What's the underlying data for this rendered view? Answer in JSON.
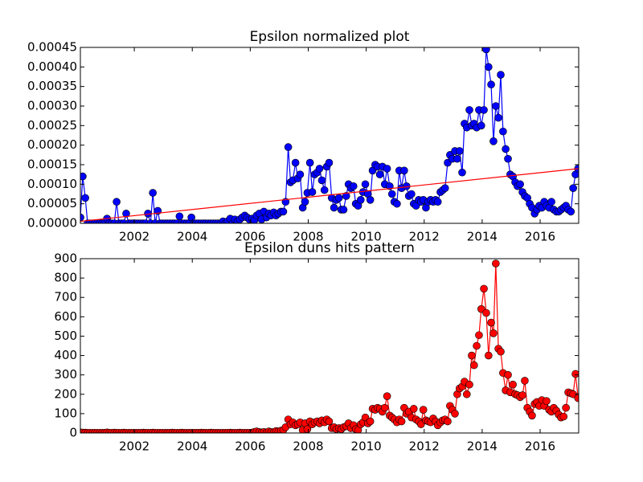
{
  "chart_data": [
    {
      "type": "line",
      "title": "Epsilon normalized plot",
      "x": [
        2000.14,
        2000.22,
        2000.31,
        2000.39,
        2000.47,
        2000.56,
        2000.64,
        2000.72,
        2000.81,
        2000.89,
        2000.97,
        2001.06,
        2001.14,
        2001.22,
        2001.31,
        2001.39,
        2001.47,
        2001.56,
        2001.64,
        2001.72,
        2001.81,
        2001.89,
        2001.97,
        2002.06,
        2002.14,
        2002.22,
        2002.31,
        2002.39,
        2002.47,
        2002.56,
        2002.64,
        2002.72,
        2002.81,
        2002.89,
        2002.97,
        2003.06,
        2003.14,
        2003.22,
        2003.31,
        2003.39,
        2003.47,
        2003.56,
        2003.64,
        2003.72,
        2003.81,
        2003.89,
        2003.97,
        2004.06,
        2004.14,
        2004.22,
        2004.31,
        2004.39,
        2004.47,
        2004.56,
        2004.64,
        2004.72,
        2004.81,
        2004.89,
        2004.97,
        2005.06,
        2005.14,
        2005.22,
        2005.31,
        2005.39,
        2005.47,
        2005.56,
        2005.64,
        2005.72,
        2005.81,
        2005.89,
        2005.97,
        2006.06,
        2006.14,
        2006.22,
        2006.31,
        2006.39,
        2006.47,
        2006.56,
        2006.64,
        2006.72,
        2006.81,
        2006.89,
        2006.97,
        2007.06,
        2007.14,
        2007.22,
        2007.31,
        2007.39,
        2007.47,
        2007.56,
        2007.64,
        2007.72,
        2007.81,
        2007.89,
        2007.97,
        2008.06,
        2008.14,
        2008.22,
        2008.31,
        2008.39,
        2008.47,
        2008.56,
        2008.64,
        2008.72,
        2008.81,
        2008.89,
        2008.97,
        2009.06,
        2009.14,
        2009.22,
        2009.31,
        2009.39,
        2009.47,
        2009.56,
        2009.64,
        2009.72,
        2009.81,
        2009.89,
        2009.97,
        2010.06,
        2010.14,
        2010.22,
        2010.31,
        2010.39,
        2010.47,
        2010.56,
        2010.64,
        2010.72,
        2010.81,
        2010.89,
        2010.97,
        2011.06,
        2011.14,
        2011.22,
        2011.31,
        2011.39,
        2011.47,
        2011.56,
        2011.64,
        2011.72,
        2011.81,
        2011.89,
        2011.97,
        2012.06,
        2012.14,
        2012.22,
        2012.31,
        2012.39,
        2012.47,
        2012.56,
        2012.64,
        2012.72,
        2012.81,
        2012.89,
        2012.97,
        2013.06,
        2013.14,
        2013.22,
        2013.31,
        2013.39,
        2013.47,
        2013.56,
        2013.64,
        2013.72,
        2013.81,
        2013.89,
        2013.97,
        2014.06,
        2014.14,
        2014.22,
        2014.31,
        2014.39,
        2014.47,
        2014.56,
        2014.64,
        2014.72,
        2014.81,
        2014.89,
        2014.97,
        2015.06,
        2015.14,
        2015.22,
        2015.31,
        2015.39,
        2015.47,
        2015.56,
        2015.64,
        2015.72,
        2015.81,
        2015.89,
        2015.97,
        2016.06,
        2016.14,
        2016.22,
        2016.31,
        2016.39,
        2016.47,
        2016.56,
        2016.64,
        2016.72,
        2016.81,
        2016.89,
        2016.97,
        2017.06,
        2017.14,
        2017.22,
        2017.31
      ],
      "series": [
        {
          "color": "#0000ff",
          "values": [
            1.5e-05,
            0.00012,
            6.5e-05,
            0,
            0,
            0,
            0,
            0,
            0,
            0,
            0,
            1.2e-05,
            0,
            0,
            0,
            5.5e-05,
            0,
            0,
            0,
            2.5e-05,
            0,
            0,
            0,
            0,
            0,
            0,
            0,
            0,
            2.5e-05,
            0,
            7.8e-05,
            0,
            3.2e-05,
            0,
            0,
            0,
            0,
            0,
            0,
            0,
            0,
            1.8e-05,
            0,
            0,
            0,
            0,
            1.5e-05,
            0,
            0,
            0,
            0,
            0,
            0,
            0,
            0,
            0,
            0,
            0,
            0,
            5e-06,
            0,
            5e-06,
            1.2e-05,
            0,
            1e-05,
            5e-06,
            1e-05,
            1.5e-05,
            2e-05,
            1.5e-05,
            1e-05,
            1.2e-05,
            8e-06,
            2e-05,
            2.5e-05,
            1e-05,
            3e-05,
            1.5e-05,
            2.5e-05,
            2e-05,
            2.8e-05,
            2e-05,
            2.5e-05,
            3e-05,
            3e-05,
            5.5e-05,
            0.000195,
            0.000105,
            0.00011,
            0.000155,
            0.000115,
            0.000125,
            4e-05,
            5.5e-05,
            7.8e-05,
            0.000155,
            8e-05,
            0.000125,
            0.00013,
            0.00014,
            0.00011,
            8.5e-05,
            0.000145,
            0.000155,
            6.5e-05,
            4e-05,
            6e-05,
            6.5e-05,
            3.5e-05,
            3.5e-05,
            7e-05,
            0.0001,
            9e-05,
            9.5e-05,
            5e-05,
            4.5e-05,
            6e-05,
            8e-05,
            0.0001,
            7.5e-05,
            6e-05,
            0.000135,
            0.00015,
            0.000145,
            0.000125,
            0.000145,
            0.0001,
            0.00014,
            9.5e-05,
            7.5e-05,
            5.5e-05,
            5e-05,
            0.000135,
            9e-05,
            0.000135,
            9.5e-05,
            7e-05,
            7.5e-05,
            5e-05,
            4.5e-05,
            6e-05,
            5.5e-05,
            6e-05,
            4e-05,
            5.5e-05,
            6e-05,
            5.5e-05,
            6e-05,
            5.5e-05,
            8e-05,
            8.5e-05,
            9e-05,
            0.000155,
            0.000175,
            0.000165,
            0.000185,
            0.000165,
            0.000185,
            0.00013,
            0.000255,
            0.000245,
            0.00029,
            0.00025,
            0.000255,
            0.000245,
            0.00029,
            0.00025,
            0.00029,
            0.000445,
            0.0004,
            0.000355,
            0.00021,
            0.0003,
            0.00027,
            0.00038,
            0.000235,
            0.00019,
            0.000165,
            0.000125,
            0.00012,
            0.000105,
            9.5e-05,
            0.0001,
            8e-05,
            7e-05,
            6.5e-05,
            5e-05,
            4e-05,
            2.5e-05,
            3.5e-05,
            4.5e-05,
            4e-05,
            5.5e-05,
            4.5e-05,
            4e-05,
            5.5e-05,
            3.5e-05,
            3e-05,
            3e-05,
            3.5e-05,
            4e-05,
            4.5e-05,
            3.5e-05,
            3e-05,
            9e-05,
            0.000125,
            0.00014
          ]
        }
      ],
      "trend": {
        "color": "#ff0000",
        "x": [
          2000.14,
          2017.33
        ],
        "values": [
          5e-06,
          0.00014
        ]
      },
      "xlim": [
        2000.14,
        2017.33
      ],
      "xticks": [
        2002,
        2004,
        2006,
        2008,
        2010,
        2012,
        2014,
        2016
      ],
      "ylim": [
        0,
        0.00045
      ],
      "yticks": [
        {
          "value": 0,
          "label": "0.00000"
        },
        {
          "value": 5e-05,
          "label": "0.00005"
        },
        {
          "value": 0.0001,
          "label": "0.00010"
        },
        {
          "value": 0.00015,
          "label": "0.00015"
        },
        {
          "value": 0.0002,
          "label": "0.00020"
        },
        {
          "value": 0.00025,
          "label": "0.00025"
        },
        {
          "value": 0.0003,
          "label": "0.00030"
        },
        {
          "value": 0.00035,
          "label": "0.00035"
        },
        {
          "value": 0.0004,
          "label": "0.00040"
        },
        {
          "value": 0.00045,
          "label": "0.00045"
        }
      ]
    },
    {
      "type": "line",
      "title": "Epsilon duns hits pattern",
      "x": [
        2000.14,
        2000.22,
        2000.31,
        2000.39,
        2000.47,
        2000.56,
        2000.64,
        2000.72,
        2000.81,
        2000.89,
        2000.97,
        2001.06,
        2001.14,
        2001.22,
        2001.31,
        2001.39,
        2001.47,
        2001.56,
        2001.64,
        2001.72,
        2001.81,
        2001.89,
        2001.97,
        2002.06,
        2002.14,
        2002.22,
        2002.31,
        2002.39,
        2002.47,
        2002.56,
        2002.64,
        2002.72,
        2002.81,
        2002.89,
        2002.97,
        2003.06,
        2003.14,
        2003.22,
        2003.31,
        2003.39,
        2003.47,
        2003.56,
        2003.64,
        2003.72,
        2003.81,
        2003.89,
        2003.97,
        2004.06,
        2004.14,
        2004.22,
        2004.31,
        2004.39,
        2004.47,
        2004.56,
        2004.64,
        2004.72,
        2004.81,
        2004.89,
        2004.97,
        2005.06,
        2005.14,
        2005.22,
        2005.31,
        2005.39,
        2005.47,
        2005.56,
        2005.64,
        2005.72,
        2005.81,
        2005.89,
        2005.97,
        2006.06,
        2006.14,
        2006.22,
        2006.31,
        2006.39,
        2006.47,
        2006.56,
        2006.64,
        2006.72,
        2006.81,
        2006.89,
        2006.97,
        2007.06,
        2007.14,
        2007.22,
        2007.31,
        2007.39,
        2007.47,
        2007.56,
        2007.64,
        2007.72,
        2007.81,
        2007.89,
        2007.97,
        2008.06,
        2008.14,
        2008.22,
        2008.31,
        2008.39,
        2008.47,
        2008.56,
        2008.64,
        2008.72,
        2008.81,
        2008.89,
        2008.97,
        2009.06,
        2009.14,
        2009.22,
        2009.31,
        2009.39,
        2009.47,
        2009.56,
        2009.64,
        2009.72,
        2009.81,
        2009.89,
        2009.97,
        2010.06,
        2010.14,
        2010.22,
        2010.31,
        2010.39,
        2010.47,
        2010.56,
        2010.64,
        2010.72,
        2010.81,
        2010.89,
        2010.97,
        2011.06,
        2011.14,
        2011.22,
        2011.31,
        2011.39,
        2011.47,
        2011.56,
        2011.64,
        2011.72,
        2011.81,
        2011.89,
        2011.97,
        2012.06,
        2012.14,
        2012.22,
        2012.31,
        2012.39,
        2012.47,
        2012.56,
        2012.64,
        2012.72,
        2012.81,
        2012.89,
        2012.97,
        2013.06,
        2013.14,
        2013.22,
        2013.31,
        2013.39,
        2013.47,
        2013.56,
        2013.64,
        2013.72,
        2013.81,
        2013.89,
        2013.97,
        2014.06,
        2014.14,
        2014.22,
        2014.31,
        2014.39,
        2014.47,
        2014.56,
        2014.64,
        2014.72,
        2014.81,
        2014.89,
        2014.97,
        2015.06,
        2015.14,
        2015.22,
        2015.31,
        2015.39,
        2015.47,
        2015.56,
        2015.64,
        2015.72,
        2015.81,
        2015.89,
        2015.97,
        2016.06,
        2016.14,
        2016.22,
        2016.31,
        2016.39,
        2016.47,
        2016.56,
        2016.64,
        2016.72,
        2016.81,
        2016.89,
        2016.97,
        2017.06,
        2017.14,
        2017.22,
        2017.31
      ],
      "series": [
        {
          "color": "#ff0000",
          "values": [
            3,
            2,
            2,
            1,
            1,
            1,
            1,
            1,
            1,
            1,
            1,
            3,
            1,
            1,
            2,
            1,
            1,
            1,
            2,
            1,
            1,
            1,
            1,
            1,
            1,
            1,
            2,
            1,
            1,
            1,
            2,
            1,
            1,
            1,
            1,
            1,
            1,
            1,
            2,
            1,
            1,
            1,
            2,
            1,
            1,
            1,
            1,
            1,
            1,
            1,
            2,
            1,
            1,
            1,
            2,
            1,
            1,
            1,
            1,
            1,
            1,
            1,
            2,
            1,
            1,
            1,
            2,
            1,
            1,
            1,
            1,
            2,
            5,
            8,
            5,
            3,
            5,
            3,
            8,
            5,
            5,
            10,
            8,
            12,
            15,
            30,
            70,
            45,
            55,
            40,
            45,
            55,
            15,
            50,
            20,
            60,
            45,
            55,
            60,
            50,
            65,
            55,
            70,
            60,
            25,
            30,
            20,
            25,
            20,
            30,
            35,
            50,
            25,
            40,
            20,
            15,
            45,
            55,
            80,
            50,
            60,
            125,
            120,
            130,
            125,
            110,
            130,
            190,
            90,
            80,
            70,
            55,
            70,
            60,
            130,
            100,
            110,
            80,
            125,
            70,
            60,
            45,
            120,
            65,
            60,
            55,
            75,
            60,
            40,
            55,
            65,
            70,
            60,
            140,
            120,
            100,
            200,
            230,
            240,
            265,
            200,
            250,
            400,
            350,
            450,
            505,
            640,
            745,
            620,
            400,
            570,
            515,
            875,
            435,
            420,
            310,
            220,
            300,
            210,
            250,
            200,
            195,
            185,
            195,
            270,
            130,
            110,
            90,
            150,
            160,
            140,
            170,
            140,
            165,
            120,
            110,
            130,
            115,
            95,
            80,
            85,
            130,
            210,
            205,
            200,
            305,
            180
          ]
        }
      ],
      "xlim": [
        2000.14,
        2017.33
      ],
      "xticks": [
        2002,
        2004,
        2006,
        2008,
        2010,
        2012,
        2014,
        2016
      ],
      "ylim": [
        0,
        900
      ],
      "yticks": [
        0,
        100,
        200,
        300,
        400,
        500,
        600,
        700,
        800,
        900
      ]
    }
  ]
}
